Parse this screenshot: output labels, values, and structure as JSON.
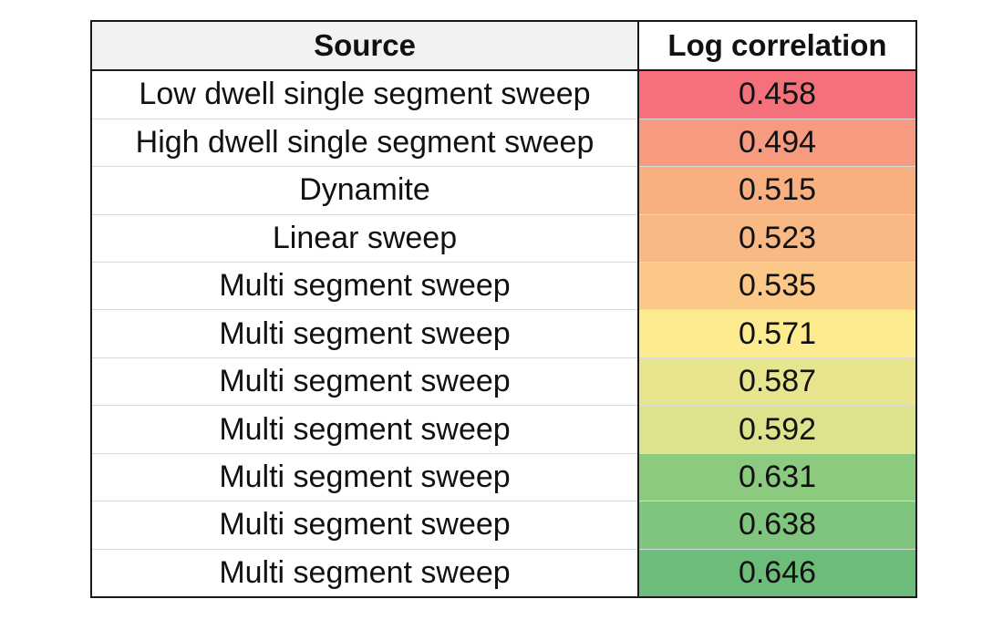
{
  "chart_data": {
    "type": "table",
    "columns": [
      "Source",
      "Log correlation"
    ],
    "rows": [
      {
        "source": "Low dwell single segment sweep",
        "value": 0.458,
        "label": "0.458",
        "color": "#f4707a"
      },
      {
        "source": "High dwell single segment sweep",
        "value": 0.494,
        "label": "0.494",
        "color": "#f69a80"
      },
      {
        "source": "Dynamite",
        "value": 0.515,
        "label": "0.515",
        "color": "#f8b080"
      },
      {
        "source": "Linear sweep",
        "value": 0.523,
        "label": "0.523",
        "color": "#f9b984"
      },
      {
        "source": "Multi segment sweep",
        "value": 0.535,
        "label": "0.535",
        "color": "#fcc888"
      },
      {
        "source": "Multi segment sweep",
        "value": 0.571,
        "label": "0.571",
        "color": "#fdeb8f"
      },
      {
        "source": "Multi segment sweep",
        "value": 0.587,
        "label": "0.587",
        "color": "#e8e58e"
      },
      {
        "source": "Multi segment sweep",
        "value": 0.592,
        "label": "0.592",
        "color": "#dde38c"
      },
      {
        "source": "Multi segment sweep",
        "value": 0.631,
        "label": "0.631",
        "color": "#8cca80"
      },
      {
        "source": "Multi segment sweep",
        "value": 0.638,
        "label": "0.638",
        "color": "#7fc57d"
      },
      {
        "source": "Multi segment sweep",
        "value": 0.646,
        "label": "0.646",
        "color": "#6cbd7a"
      }
    ],
    "color_scale": "red-yellow-green (low to high)"
  }
}
